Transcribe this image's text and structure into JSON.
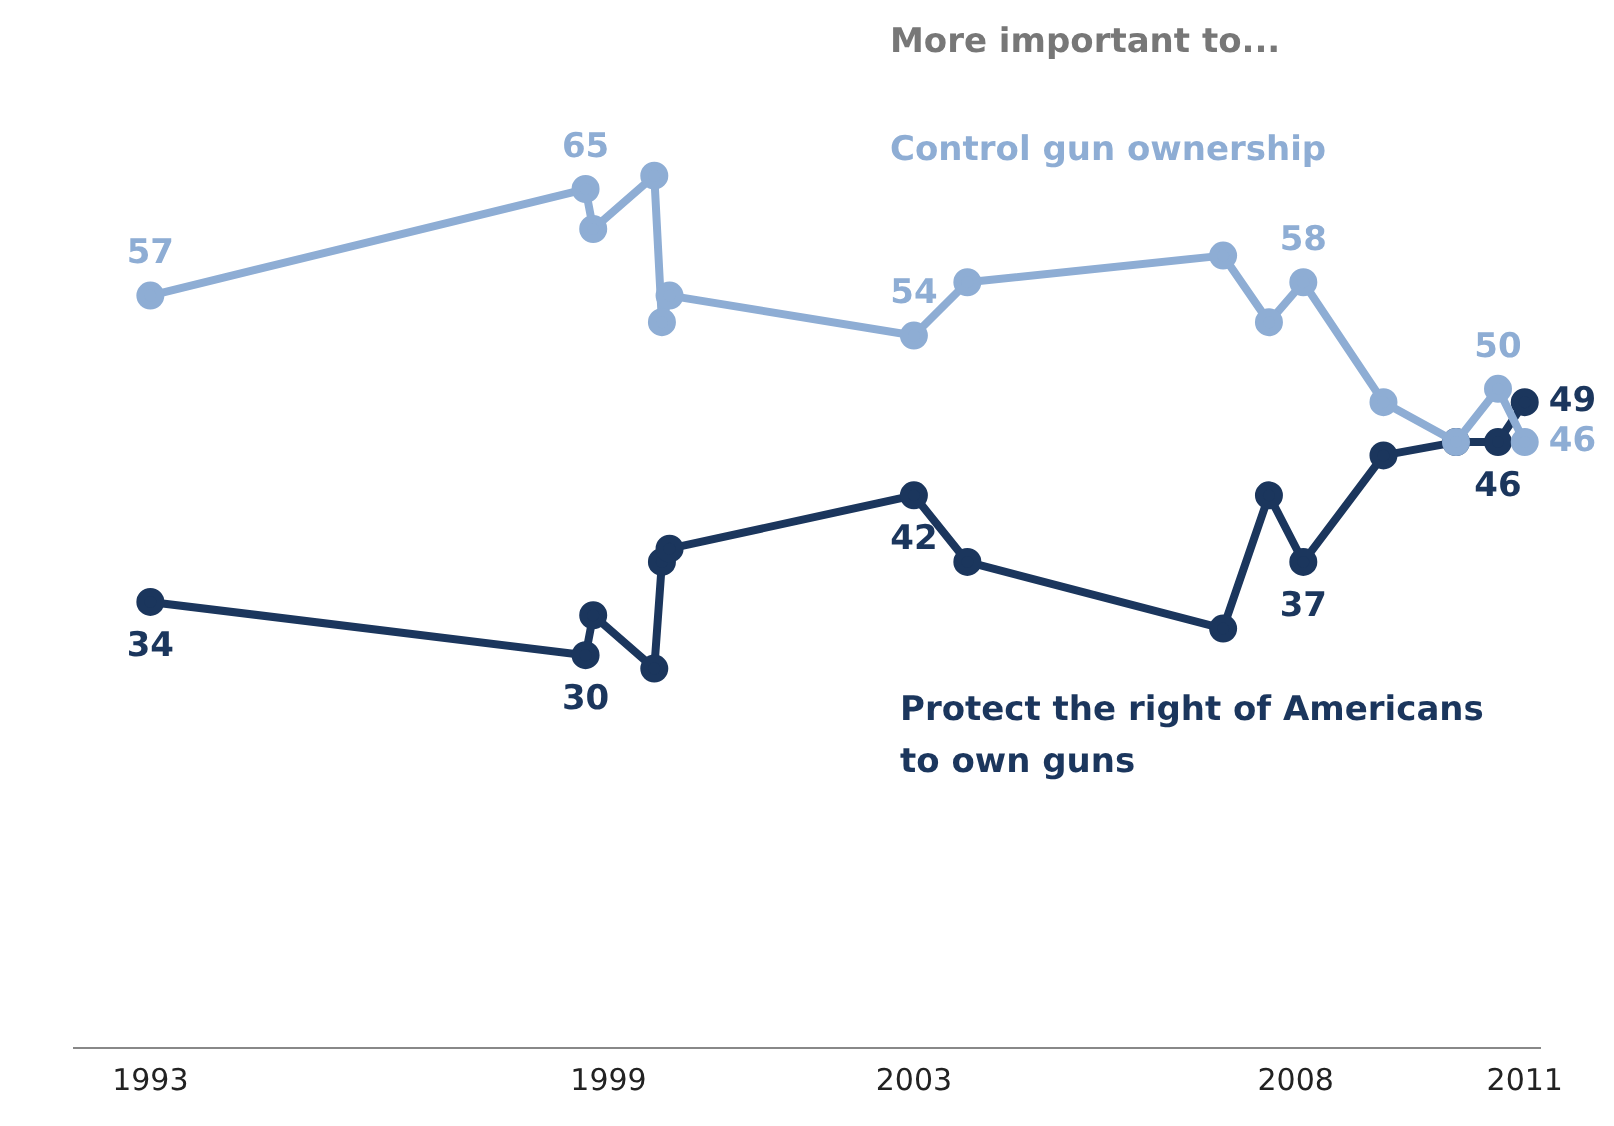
{
  "chart_data": {
    "type": "line",
    "legend_title": "More important to...",
    "x": [
      1993,
      1998.7,
      1998.8,
      1999.6,
      1999.7,
      1999.8,
      2003,
      2003.7,
      2007.05,
      2007.65,
      2008.1,
      2009.15,
      2010.1,
      2010.65,
      2011
    ],
    "xlim": [
      1992,
      2011.2
    ],
    "xticks": [
      1993,
      1999,
      2003,
      2008,
      2011
    ],
    "tick_labels": "x",
    "marker": "circle",
    "line_style": "solid",
    "grid": false,
    "series": [
      {
        "name": "Control gun ownership",
        "color": "#8eadd4",
        "values": [
          57,
          65,
          62,
          66,
          55,
          57,
          54,
          58,
          60,
          55,
          58,
          49,
          46,
          50,
          46
        ],
        "value_labels": [
          "57",
          "65",
          null,
          null,
          null,
          null,
          "54",
          null,
          null,
          null,
          "58",
          null,
          null,
          "50",
          "46"
        ]
      },
      {
        "name": "Protect the right of Americans to own guns",
        "color": "#1b365d",
        "values": [
          34,
          30,
          33,
          29,
          37,
          38,
          42,
          37,
          32,
          42,
          37,
          45,
          46,
          46,
          49
        ],
        "value_labels": [
          "34",
          "30",
          null,
          null,
          null,
          null,
          "42",
          null,
          null,
          null,
          "37",
          null,
          null,
          "46",
          "49"
        ]
      }
    ]
  }
}
